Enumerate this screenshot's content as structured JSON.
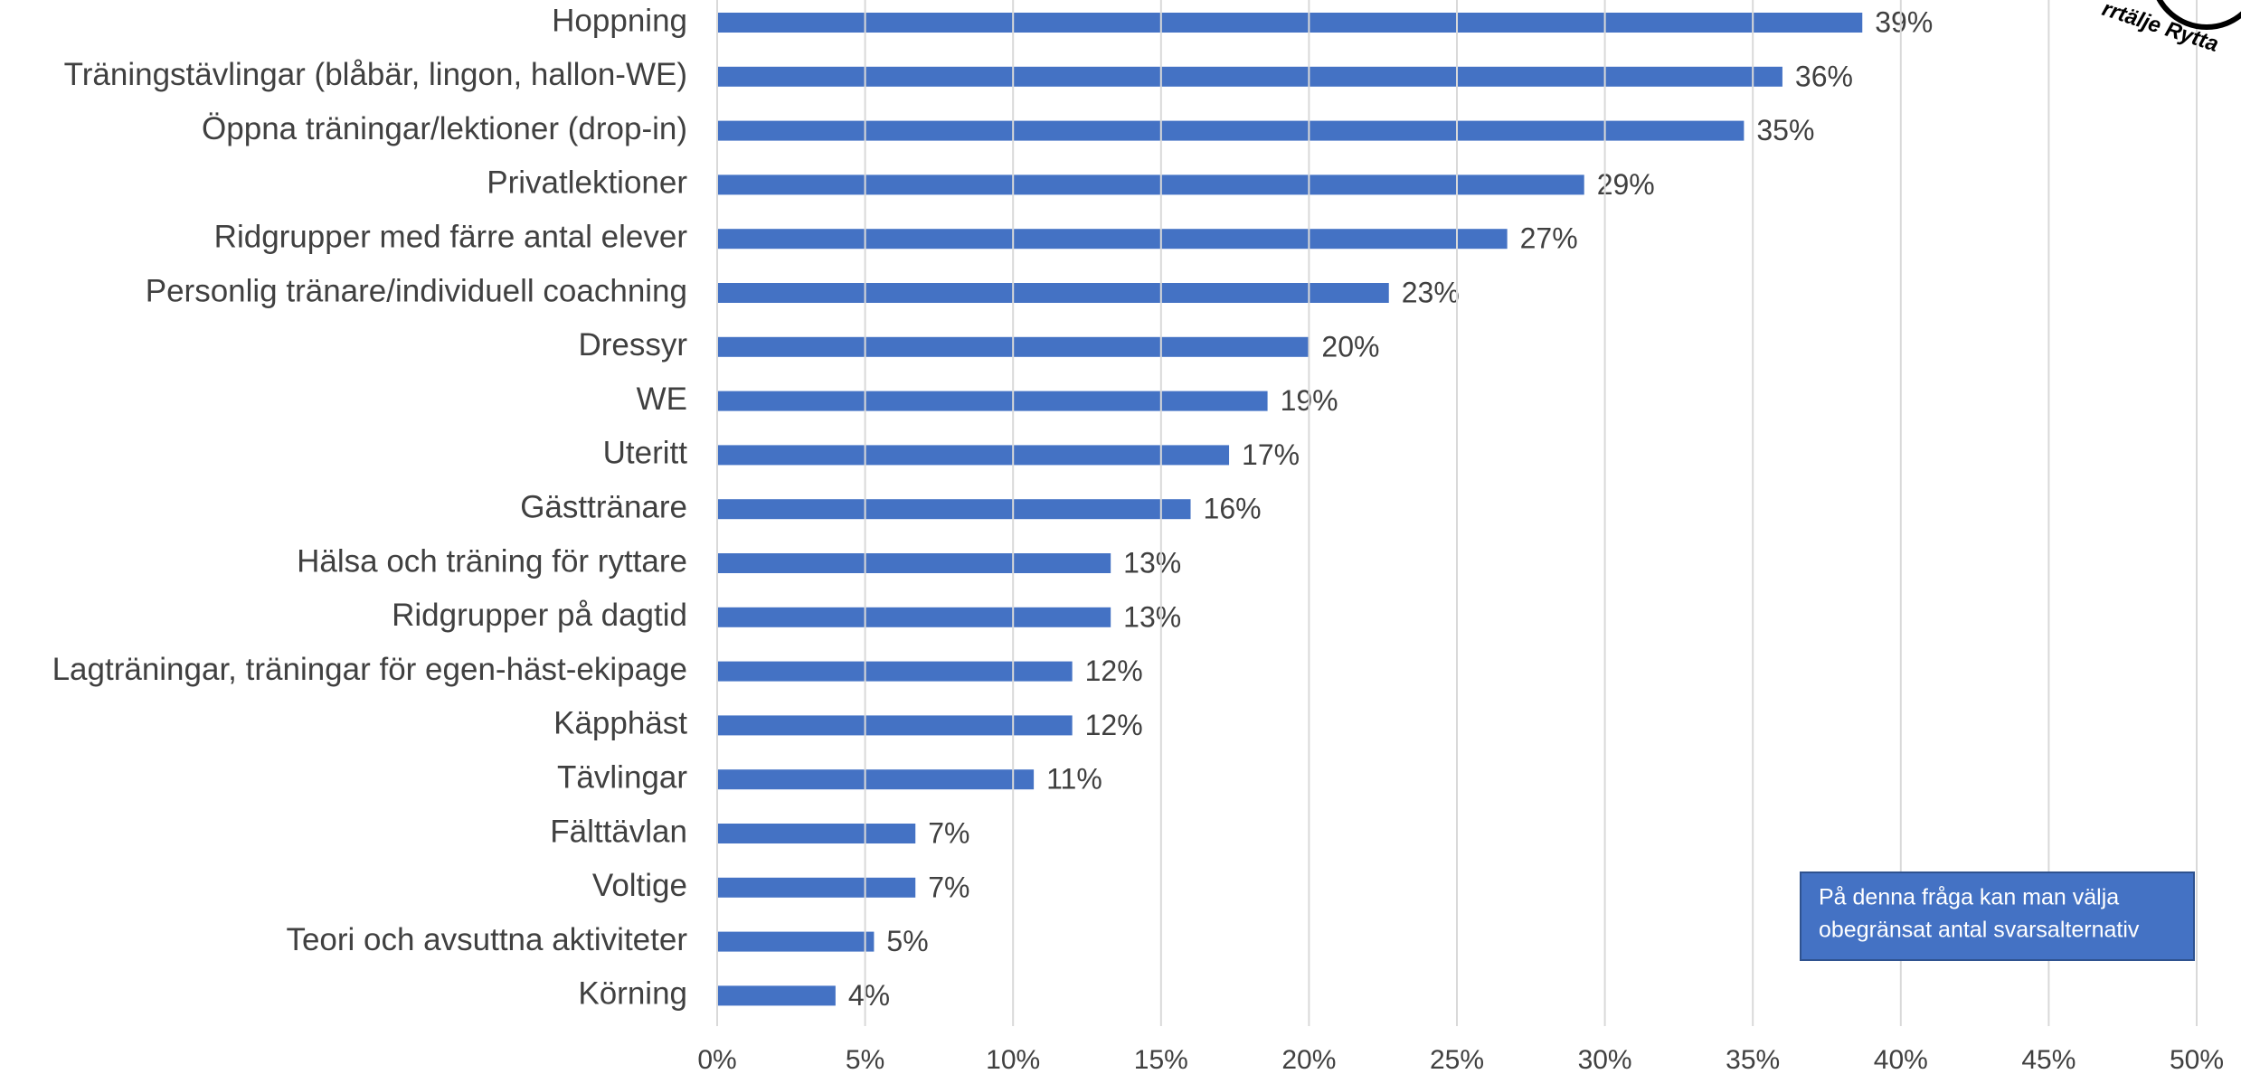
{
  "chart_data": {
    "type": "bar",
    "orientation": "horizontal",
    "categories": [
      "Hoppning",
      "Träningstävlingar (blåbär, lingon, hallon-WE)",
      "Öppna träningar/lektioner (drop-in)",
      "Privatlektioner",
      "Ridgrupper med färre antal elever",
      "Personlig tränare/individuell coachning",
      "Dressyr",
      "WE",
      "Uteritt",
      "Gästtränare",
      "Hälsa och träning för ryttare",
      "Ridgrupper på dagtid",
      "Lagträningar, träningar för egen-häst-ekipage",
      "Käpphäst",
      "Tävlingar",
      "Fälttävlan",
      "Voltige",
      "Teori och avsuttna aktiviteter",
      "Körning"
    ],
    "values": [
      38.7,
      36.0,
      34.7,
      29.3,
      26.7,
      22.7,
      20.0,
      18.6,
      17.3,
      16.0,
      13.3,
      13.3,
      12.0,
      12.0,
      10.7,
      6.7,
      6.7,
      5.3,
      4.0
    ],
    "value_labels": [
      "39%",
      "36%",
      "35%",
      "29%",
      "27%",
      "23%",
      "20%",
      "19%",
      "17%",
      "16%",
      "13%",
      "13%",
      "12%",
      "12%",
      "11%",
      "7%",
      "7%",
      "5%",
      "4%"
    ],
    "color": "#4472c4",
    "xlim": [
      0,
      50
    ],
    "xticks": [
      {
        "value": 0,
        "label": "0%"
      },
      {
        "value": 5,
        "label": "5%"
      },
      {
        "value": 10,
        "label": "10%"
      },
      {
        "value": 15,
        "label": "15%"
      },
      {
        "value": 20,
        "label": "20%"
      },
      {
        "value": 25,
        "label": "25%"
      },
      {
        "value": 30,
        "label": "30%"
      },
      {
        "value": 35,
        "label": "35%"
      },
      {
        "value": 40,
        "label": "40%"
      },
      {
        "value": 45,
        "label": "45%"
      },
      {
        "value": 50,
        "label": "50%"
      }
    ],
    "grid": true,
    "annotation": [
      "På denna fråga kan man välja",
      "obegränsat antal svarsalternativ"
    ],
    "logo_text": "rrtälje Rytta"
  }
}
